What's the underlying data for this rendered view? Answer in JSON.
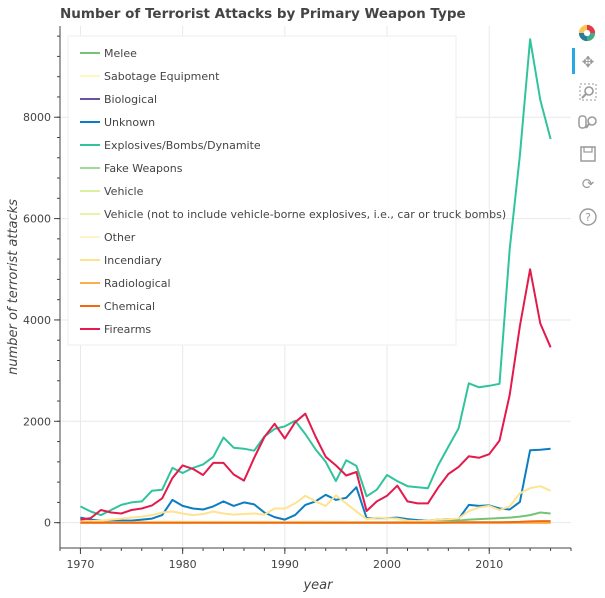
{
  "chart_data": {
    "type": "line",
    "title": "Number of Terrorist Attacks by Primary Weapon Type",
    "xlabel": "year",
    "ylabel": "number of terrorist attacks",
    "xlim": [
      1968,
      2018
    ],
    "ylim": [
      -500,
      9800
    ],
    "x_ticks": [
      1970,
      1980,
      1990,
      2000,
      2010
    ],
    "y_ticks": [
      0,
      2000,
      4000,
      6000,
      8000
    ],
    "grid": true,
    "legend_position": "top-left",
    "x": [
      1970,
      1971,
      1972,
      1973,
      1974,
      1975,
      1976,
      1977,
      1978,
      1979,
      1980,
      1981,
      1982,
      1983,
      1984,
      1985,
      1986,
      1987,
      1988,
      1989,
      1990,
      1991,
      1992,
      1993,
      1994,
      1995,
      1996,
      1997,
      1998,
      1999,
      2000,
      2001,
      2002,
      2003,
      2004,
      2005,
      2006,
      2007,
      2008,
      2009,
      2010,
      2011,
      2012,
      2013,
      2014,
      2015,
      2016
    ],
    "series": [
      {
        "name": "Melee",
        "color": "#74c476",
        "values": [
          5,
          5,
          5,
          5,
          5,
          5,
          5,
          8,
          10,
          10,
          12,
          10,
          10,
          10,
          10,
          10,
          10,
          10,
          10,
          10,
          15,
          15,
          20,
          20,
          15,
          15,
          15,
          10,
          10,
          10,
          10,
          15,
          15,
          15,
          20,
          25,
          30,
          40,
          60,
          70,
          80,
          90,
          100,
          120,
          150,
          200,
          180
        ]
      },
      {
        "name": "Sabotage Equipment",
        "color": "#fff7bc",
        "values": [
          20,
          15,
          20,
          20,
          20,
          20,
          20,
          20,
          25,
          25,
          25,
          20,
          20,
          20,
          20,
          20,
          20,
          20,
          20,
          20,
          20,
          20,
          20,
          20,
          15,
          15,
          15,
          10,
          10,
          10,
          10,
          10,
          10,
          10,
          10,
          10,
          10,
          10,
          10,
          10,
          10,
          10,
          15,
          15,
          20,
          20,
          15
        ]
      },
      {
        "name": "Biological",
        "color": "#6a51a3",
        "values": [
          0,
          0,
          0,
          0,
          0,
          0,
          0,
          0,
          0,
          0,
          0,
          0,
          0,
          0,
          0,
          0,
          0,
          0,
          0,
          0,
          0,
          0,
          0,
          0,
          0,
          0,
          0,
          0,
          0,
          0,
          0,
          2,
          0,
          0,
          0,
          0,
          0,
          0,
          0,
          0,
          0,
          0,
          0,
          0,
          0,
          0,
          0
        ]
      },
      {
        "name": "Unknown",
        "color": "#0b7dc2",
        "values": [
          100,
          60,
          40,
          30,
          40,
          40,
          60,
          80,
          150,
          450,
          330,
          280,
          260,
          320,
          420,
          330,
          400,
          360,
          200,
          110,
          60,
          150,
          350,
          420,
          550,
          450,
          490,
          700,
          90,
          90,
          90,
          100,
          70,
          50,
          40,
          60,
          70,
          70,
          350,
          330,
          340,
          280,
          260,
          410,
          1430,
          1440,
          1460
        ]
      },
      {
        "name": "Explosives/Bombs/Dynamite",
        "color": "#31c49c",
        "values": [
          320,
          220,
          150,
          250,
          350,
          400,
          420,
          630,
          650,
          1080,
          980,
          1080,
          1150,
          1300,
          1680,
          1480,
          1460,
          1420,
          1700,
          1850,
          1900,
          2010,
          1750,
          1450,
          1200,
          820,
          1230,
          1120,
          520,
          650,
          940,
          820,
          720,
          700,
          680,
          1130,
          1500,
          1860,
          2750,
          2670,
          2700,
          2740,
          5400,
          7250,
          9540,
          8340,
          7570
        ]
      },
      {
        "name": "Fake Weapons",
        "color": "#a1d99b",
        "values": [
          0,
          0,
          0,
          0,
          0,
          0,
          0,
          0,
          0,
          0,
          0,
          0,
          0,
          0,
          0,
          0,
          0,
          0,
          0,
          0,
          0,
          0,
          0,
          0,
          0,
          0,
          0,
          0,
          0,
          0,
          0,
          0,
          0,
          0,
          0,
          0,
          0,
          0,
          0,
          0,
          0,
          0,
          0,
          0,
          0,
          0,
          0
        ]
      },
      {
        "name": "Vehicle",
        "color": "#d9f0a3",
        "values": [
          0,
          0,
          0,
          0,
          0,
          0,
          0,
          0,
          0,
          0,
          0,
          0,
          0,
          0,
          0,
          0,
          0,
          0,
          0,
          0,
          0,
          0,
          0,
          0,
          0,
          0,
          0,
          0,
          0,
          0,
          0,
          0,
          0,
          0,
          0,
          0,
          0,
          0,
          0,
          0,
          0,
          0,
          0,
          0,
          0,
          0,
          0
        ]
      },
      {
        "name": "Vehicle (not to include vehicle-borne explosives, i.e., car or truck bombs)",
        "color": "#e5f5a8",
        "values": [
          0,
          0,
          0,
          0,
          0,
          0,
          0,
          0,
          0,
          0,
          0,
          0,
          0,
          0,
          0,
          0,
          0,
          0,
          0,
          0,
          0,
          0,
          0,
          0,
          0,
          0,
          0,
          0,
          0,
          0,
          0,
          0,
          0,
          0,
          0,
          0,
          0,
          0,
          0,
          0,
          0,
          0,
          0,
          0,
          0,
          0,
          0
        ]
      },
      {
        "name": "Other",
        "color": "#fff5c2",
        "values": [
          10,
          8,
          10,
          10,
          10,
          10,
          10,
          12,
          15,
          15,
          15,
          12,
          12,
          12,
          12,
          12,
          12,
          12,
          10,
          10,
          12,
          12,
          15,
          15,
          12,
          12,
          12,
          10,
          10,
          10,
          10,
          10,
          10,
          10,
          10,
          10,
          10,
          10,
          10,
          10,
          10,
          10,
          15,
          15,
          20,
          20,
          15
        ]
      },
      {
        "name": "Incendiary",
        "color": "#fee391",
        "values": [
          40,
          30,
          40,
          60,
          80,
          100,
          120,
          150,
          200,
          220,
          180,
          150,
          170,
          220,
          180,
          160,
          170,
          180,
          160,
          280,
          280,
          380,
          530,
          420,
          330,
          540,
          380,
          220,
          70,
          100,
          90,
          80,
          40,
          30,
          40,
          60,
          70,
          80,
          230,
          300,
          330,
          250,
          320,
          580,
          680,
          720,
          630
        ]
      },
      {
        "name": "Radiological",
        "color": "#fdae4b",
        "values": [
          0,
          0,
          0,
          0,
          0,
          0,
          0,
          0,
          0,
          0,
          0,
          0,
          0,
          0,
          0,
          0,
          0,
          0,
          0,
          0,
          0,
          0,
          0,
          0,
          0,
          0,
          0,
          0,
          0,
          0,
          0,
          0,
          0,
          0,
          0,
          0,
          0,
          0,
          0,
          0,
          0,
          0,
          0,
          0,
          0,
          0,
          0
        ]
      },
      {
        "name": "Chemical",
        "color": "#f16913",
        "values": [
          2,
          2,
          2,
          2,
          2,
          2,
          2,
          2,
          2,
          2,
          2,
          2,
          2,
          2,
          2,
          2,
          2,
          2,
          2,
          2,
          2,
          2,
          2,
          2,
          2,
          2,
          2,
          2,
          2,
          2,
          2,
          2,
          2,
          2,
          2,
          2,
          5,
          8,
          10,
          10,
          10,
          10,
          12,
          15,
          25,
          30,
          30
        ]
      },
      {
        "name": "Firearms",
        "color": "#e31a4c",
        "values": [
          60,
          90,
          250,
          200,
          180,
          250,
          280,
          340,
          480,
          880,
          1130,
          1060,
          940,
          1180,
          1180,
          950,
          830,
          1280,
          1690,
          1950,
          1660,
          1980,
          2150,
          1700,
          1300,
          1130,
          930,
          1000,
          230,
          420,
          530,
          730,
          420,
          380,
          380,
          690,
          960,
          1100,
          1310,
          1280,
          1350,
          1620,
          2520,
          3880,
          5000,
          3930,
          3460
        ]
      }
    ]
  },
  "toolbar": {
    "tools": [
      "bokeh-logo-icon",
      "pan-icon",
      "box-zoom-icon",
      "wheel-zoom-icon",
      "save-icon",
      "reset-icon",
      "help-icon"
    ]
  }
}
